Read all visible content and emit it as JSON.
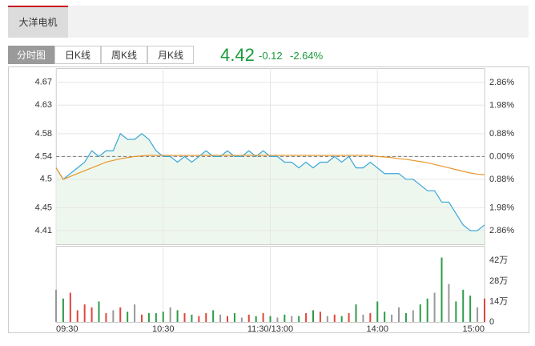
{
  "header": {
    "stock_tab": "大洋电机",
    "view_tabs": [
      "分时图",
      "日K线",
      "周K线",
      "月K线"
    ],
    "quote": {
      "price": "4.42",
      "change": "-0.12",
      "change_pct": "-2.64%"
    }
  },
  "chart_data": [
    {
      "type": "line",
      "x": [
        0,
        4,
        8,
        12,
        16,
        20,
        24,
        28,
        32,
        36,
        40,
        44,
        48,
        52,
        56,
        60,
        64,
        68,
        72,
        76,
        80,
        84,
        88,
        92,
        96,
        100,
        104,
        108,
        112,
        116,
        120,
        124,
        128,
        132,
        136,
        140,
        144,
        148,
        152,
        156,
        160,
        164,
        168,
        172,
        176,
        180,
        184,
        188,
        192,
        196,
        200,
        204,
        208,
        212,
        216,
        220,
        224,
        228,
        232,
        236,
        240
      ],
      "xlim": [
        0,
        240
      ],
      "xticks": [
        {
          "value": 0,
          "label": "09:30"
        },
        {
          "value": 60,
          "label": "10:30"
        },
        {
          "value": 120,
          "label": "11:30/13:00"
        },
        {
          "value": 180,
          "label": "14:00"
        },
        {
          "value": 240,
          "label": "15:00"
        }
      ],
      "ylim": [
        4.386,
        4.695
      ],
      "yticks": [
        4.67,
        4.63,
        4.58,
        4.54,
        4.5,
        4.45,
        4.41
      ],
      "y2lim": [
        -3.39,
        3.42
      ],
      "y2ticks": [
        {
          "value": 2.86,
          "label": "2.86%"
        },
        {
          "value": 1.98,
          "label": "1.98%"
        },
        {
          "value": 0.88,
          "label": "0.88%"
        },
        {
          "value": 0,
          "label": "0.00%"
        },
        {
          "value": -0.88,
          "label": "0.88%"
        },
        {
          "value": -1.98,
          "label": "1.98%"
        },
        {
          "value": -2.86,
          "label": "2.86%"
        }
      ],
      "prev_close": 4.54,
      "grid": true,
      "series": [
        {
          "color": "#3aa6d8",
          "fill": "#eef7ee",
          "values": [
            4.52,
            4.5,
            4.51,
            4.52,
            4.53,
            4.55,
            4.54,
            4.55,
            4.55,
            4.58,
            4.57,
            4.57,
            4.58,
            4.57,
            4.55,
            4.54,
            4.54,
            4.53,
            4.54,
            4.53,
            4.54,
            4.55,
            4.54,
            4.54,
            4.55,
            4.54,
            4.54,
            4.55,
            4.54,
            4.55,
            4.54,
            4.54,
            4.53,
            4.53,
            4.52,
            4.53,
            4.52,
            4.53,
            4.53,
            4.54,
            4.53,
            4.54,
            4.52,
            4.52,
            4.53,
            4.52,
            4.51,
            4.51,
            4.51,
            4.5,
            4.5,
            4.49,
            4.48,
            4.48,
            4.46,
            4.46,
            4.44,
            4.42,
            4.41,
            4.41,
            4.42
          ]
        },
        {
          "color": "#e8962a",
          "values": [
            4.52,
            4.5,
            4.505,
            4.51,
            4.515,
            4.52,
            4.525,
            4.53,
            4.533,
            4.536,
            4.538,
            4.54,
            4.541,
            4.542,
            4.542,
            4.542,
            4.542,
            4.542,
            4.542,
            4.542,
            4.542,
            4.542,
            4.542,
            4.542,
            4.542,
            4.542,
            4.542,
            4.542,
            4.542,
            4.542,
            4.542,
            4.542,
            4.542,
            4.542,
            4.542,
            4.542,
            4.542,
            4.542,
            4.542,
            4.542,
            4.542,
            4.542,
            4.542,
            4.542,
            4.542,
            4.54,
            4.539,
            4.538,
            4.536,
            4.535,
            4.533,
            4.531,
            4.529,
            4.526,
            4.523,
            4.52,
            4.517,
            4.514,
            4.511,
            4.509,
            4.508
          ]
        }
      ]
    },
    {
      "type": "bar",
      "x": [
        0,
        4,
        8,
        12,
        16,
        20,
        24,
        28,
        32,
        36,
        40,
        44,
        48,
        52,
        56,
        60,
        64,
        68,
        72,
        76,
        80,
        84,
        88,
        92,
        96,
        100,
        104,
        108,
        112,
        116,
        120,
        124,
        128,
        132,
        136,
        140,
        144,
        148,
        152,
        156,
        160,
        164,
        168,
        172,
        176,
        180,
        184,
        188,
        192,
        196,
        200,
        204,
        208,
        212,
        216,
        220,
        224,
        228,
        232,
        236,
        240
      ],
      "xlim": [
        0,
        240
      ],
      "ylim": [
        0,
        52
      ],
      "yticks": [
        {
          "value": 42,
          "label": "42万"
        },
        {
          "value": 28,
          "label": "28万"
        },
        {
          "value": 14,
          "label": "14万"
        },
        0
      ],
      "colors": {
        "up": "#e0463c",
        "down": "#2e9b49",
        "flat": "#999999"
      },
      "values": [
        22,
        16,
        20,
        8,
        12,
        10,
        14,
        6,
        8,
        10,
        7,
        12,
        5,
        6,
        6,
        7,
        10,
        8,
        6,
        5,
        4,
        6,
        8,
        5,
        4,
        6,
        3,
        5,
        4,
        6,
        4,
        3,
        5,
        4,
        4,
        6,
        8,
        7,
        4,
        5,
        4,
        6,
        12,
        5,
        6,
        14,
        7,
        5,
        10,
        6,
        8,
        12,
        16,
        20,
        44,
        26,
        14,
        22,
        18,
        10,
        16
      ]
    }
  ]
}
